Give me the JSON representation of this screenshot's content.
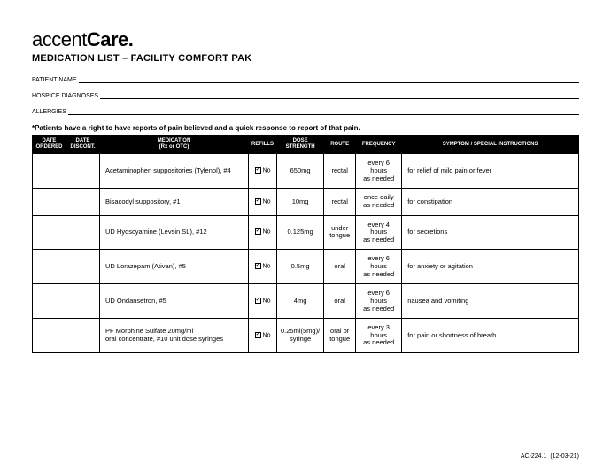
{
  "logo": {
    "part1": "accent",
    "part2": "Care",
    "dot": "."
  },
  "title": "MEDICATION LIST – FACILITY COMFORT PAK",
  "fields": {
    "patient": "PATIENT NAME",
    "diagnoses": "HOSPICE DIAGNOSES",
    "allergies": "ALLERGIES"
  },
  "note": "*Patients have a right to have reports of pain believed and a quick response to report of that pain.",
  "table": {
    "headers": {
      "date_ordered": "DATE ORDERED",
      "date_discont": "DATE DISCONT.",
      "medication": "MEDICATION",
      "medication_sub": "(Rx or OTC)",
      "refills": "REFILLS",
      "dose": "DOSE STRENGTH",
      "route": "ROUTE",
      "frequency": "FREQUENCY",
      "symptom": "SYMPTOM / SPECIAL INSTRUCTIONS"
    },
    "refill_label": "No",
    "rows": [
      {
        "medication": "Acetaminophen suppositories (Tylenol), #4",
        "dose": "650mg",
        "route": "rectal",
        "freq_l1": "every 6 hours",
        "freq_l2": "as needed",
        "symptom": "for relief of mild pain or fever"
      },
      {
        "medication": "Bisacodyl suppository, #1",
        "dose": "10mg",
        "route": "rectal",
        "freq_l1": "once daily",
        "freq_l2": "as needed",
        "symptom": "for constipation"
      },
      {
        "medication": "UD Hyoscyamine (Levsin SL), #12",
        "dose": "0.125mg",
        "route_l1": "under",
        "route_l2": "tongue",
        "freq_l1": "every 4 hours",
        "freq_l2": "as needed",
        "symptom": "for secretions"
      },
      {
        "medication": "UD Lorazepam (Ativan), #5",
        "dose": "0.5mg",
        "route": "oral",
        "freq_l1": "every 6 hours",
        "freq_l2": "as needed",
        "symptom": "for anxiety or agitation"
      },
      {
        "medication": "UD Ondansetron, #5",
        "dose": "4mg",
        "route": "oral",
        "freq_l1": "every 6 hours",
        "freq_l2": "as needed",
        "symptom": "nausea and vomiting"
      },
      {
        "medication_l1": "PF Morphine Sulfate 20mg/ml",
        "medication_l2": "oral concentrate, #10 unit dose syringes",
        "dose_l1": "0.25ml(5mg)/",
        "dose_l2": "syringe",
        "route_l1": "oral or",
        "route_l2": "tongue",
        "freq_l1": "every 3 hours",
        "freq_l2": "as needed",
        "symptom": "for pain or shortness of breath"
      }
    ]
  },
  "footer": {
    "code": "AC-224.1",
    "date": "(12-03-21)"
  }
}
